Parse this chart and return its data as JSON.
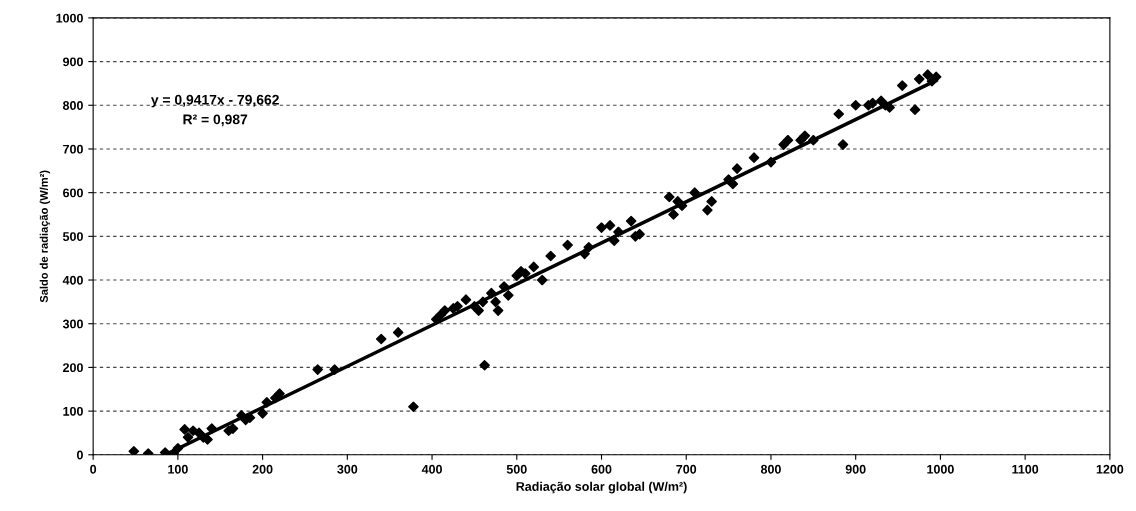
{
  "chart_data": {
    "type": "scatter",
    "xlabel": "Radiação solar global (W/m²)",
    "ylabel": "Saldo de radiação (W/m²)",
    "xlim": [
      0,
      1200
    ],
    "xticks": [
      0,
      100,
      200,
      300,
      400,
      500,
      600,
      700,
      800,
      900,
      1000,
      1100,
      1200
    ],
    "ylim": [
      0,
      1000
    ],
    "yticks": [
      0,
      100,
      200,
      300,
      400,
      500,
      600,
      700,
      800,
      900,
      1000
    ],
    "grid": "y",
    "marker": "diamond",
    "legend": false,
    "annotations": [
      "y = 0,9417x - 79,662",
      "R² = 0,987"
    ],
    "series": [
      {
        "color": "#000000",
        "x": [
          48,
          65,
          85,
          95,
          100,
          108,
          112,
          118,
          125,
          130,
          135,
          140,
          160,
          165,
          175,
          180,
          185,
          200,
          205,
          215,
          220,
          265,
          285,
          340,
          360,
          378,
          405,
          410,
          415,
          425,
          430,
          440,
          450,
          455,
          460,
          462,
          470,
          475,
          478,
          485,
          490,
          500,
          505,
          510,
          520,
          530,
          540,
          560,
          580,
          585,
          600,
          610,
          615,
          620,
          635,
          640,
          645,
          680,
          685,
          690,
          695,
          710,
          725,
          730,
          750,
          755,
          760,
          780,
          800,
          815,
          820,
          835,
          840,
          850,
          880,
          885,
          900,
          915,
          920,
          930,
          935,
          940,
          955,
          970,
          975,
          985,
          990,
          995
        ],
        "values": [
          8,
          3,
          5,
          3,
          15,
          58,
          40,
          55,
          50,
          40,
          35,
          60,
          55,
          60,
          90,
          80,
          85,
          95,
          120,
          130,
          140,
          195,
          195,
          265,
          280,
          110,
          310,
          320,
          330,
          335,
          340,
          355,
          340,
          330,
          350,
          205,
          370,
          350,
          330,
          385,
          365,
          410,
          420,
          415,
          430,
          400,
          455,
          480,
          460,
          475,
          520,
          525,
          490,
          510,
          535,
          500,
          505,
          590,
          550,
          580,
          570,
          600,
          560,
          580,
          630,
          620,
          655,
          680,
          670,
          710,
          720,
          720,
          730,
          720,
          780,
          710,
          800,
          800,
          805,
          810,
          800,
          795,
          845,
          790,
          860,
          870,
          855,
          865
        ]
      },
      {
        "type": "line",
        "color": "#000000",
        "x": [
          85,
          995
        ],
        "values": [
          0,
          857
        ],
        "marker": "none",
        "line_style": "solid"
      }
    ]
  }
}
